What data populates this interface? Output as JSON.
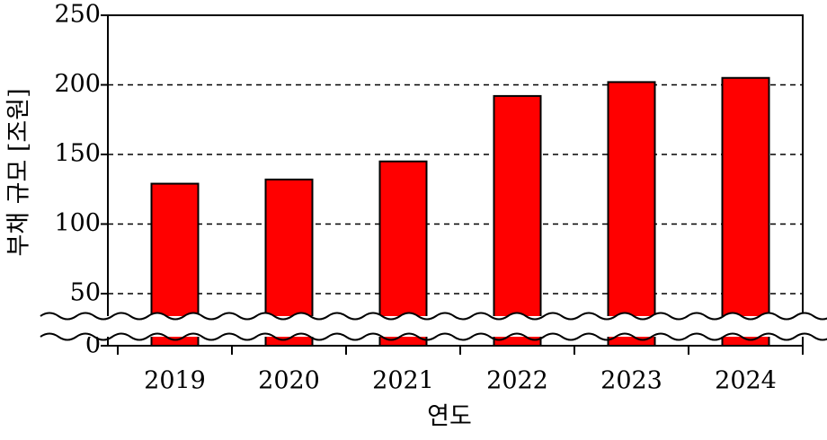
{
  "chart_data": {
    "type": "bar",
    "x_label": "연도",
    "y_label": "부채 규모 [조원]",
    "categories": [
      "2019",
      "2020",
      "2021",
      "2022",
      "2023",
      "2024"
    ],
    "values": [
      129,
      132,
      145,
      192,
      202,
      205
    ],
    "color": "#ff0000",
    "ylim": [
      0,
      250
    ],
    "yticks": [
      0,
      50,
      100,
      150,
      200,
      250
    ],
    "grid": true,
    "axis_break": true
  }
}
